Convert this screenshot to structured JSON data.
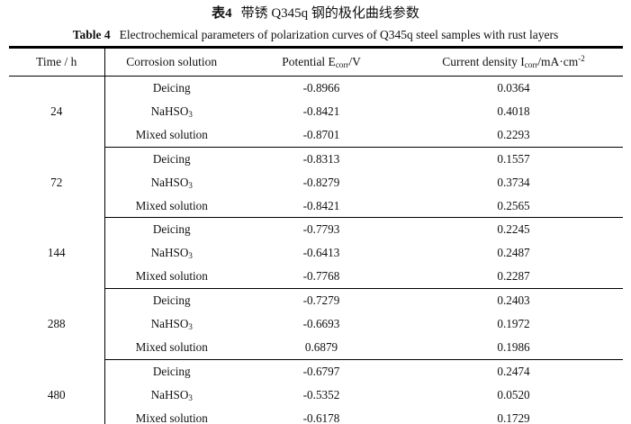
{
  "caption_zh": {
    "label": "表4",
    "text": "带锈 Q345q 钢的极化曲线参数"
  },
  "caption_en": {
    "label": "Table 4",
    "text": "Electrochemical parameters of polarization curves of Q345q steel samples with rust layers"
  },
  "colors": {
    "text": "#111111",
    "rule": "#000000",
    "background": "#ffffff"
  },
  "table": {
    "headers": {
      "time": "Time / h",
      "solution": "Corrosion solution",
      "potential_pre": "Potential E",
      "potential_sub": "corr",
      "potential_post": "/V",
      "current_pre": "Current density I",
      "current_sub": "corr",
      "current_mid": "/mA·cm",
      "current_sup": "-2"
    },
    "groups": [
      {
        "time": "24",
        "rows": [
          {
            "solution": "Deicing",
            "potential": "-0.8966",
            "current": "0.0364"
          },
          {
            "solution": "NaHSO",
            "solution_sub": "3",
            "potential": "-0.8421",
            "current": "0.4018"
          },
          {
            "solution": "Mixed solution",
            "potential": "-0.8701",
            "current": "0.2293"
          }
        ]
      },
      {
        "time": "72",
        "rows": [
          {
            "solution": "Deicing",
            "potential": "-0.8313",
            "current": "0.1557"
          },
          {
            "solution": "NaHSO",
            "solution_sub": "3",
            "potential": "-0.8279",
            "current": "0.3734"
          },
          {
            "solution": "Mixed solution",
            "potential": "-0.8421",
            "current": "0.2565"
          }
        ]
      },
      {
        "time": "144",
        "rows": [
          {
            "solution": "Deicing",
            "potential": "-0.7793",
            "current": "0.2245"
          },
          {
            "solution": "NaHSO",
            "solution_sub": "3",
            "potential": "-0.6413",
            "current": "0.2487"
          },
          {
            "solution": "Mixed solution",
            "potential": "-0.7768",
            "current": "0.2287"
          }
        ]
      },
      {
        "time": "288",
        "rows": [
          {
            "solution": "Deicing",
            "potential": "-0.7279",
            "current": "0.2403"
          },
          {
            "solution": "NaHSO",
            "solution_sub": "3",
            "potential": "-0.6693",
            "current": "0.1972"
          },
          {
            "solution": "Mixed solution",
            "potential": "0.6879",
            "current": "0.1986"
          }
        ]
      },
      {
        "time": "480",
        "rows": [
          {
            "solution": "Deicing",
            "potential": "-0.6797",
            "current": "0.2474"
          },
          {
            "solution": "NaHSO",
            "solution_sub": "3",
            "potential": "-0.5352",
            "current": "0.0520"
          },
          {
            "solution": "Mixed solution",
            "potential": "-0.6178",
            "current": "0.1729"
          }
        ]
      }
    ]
  }
}
